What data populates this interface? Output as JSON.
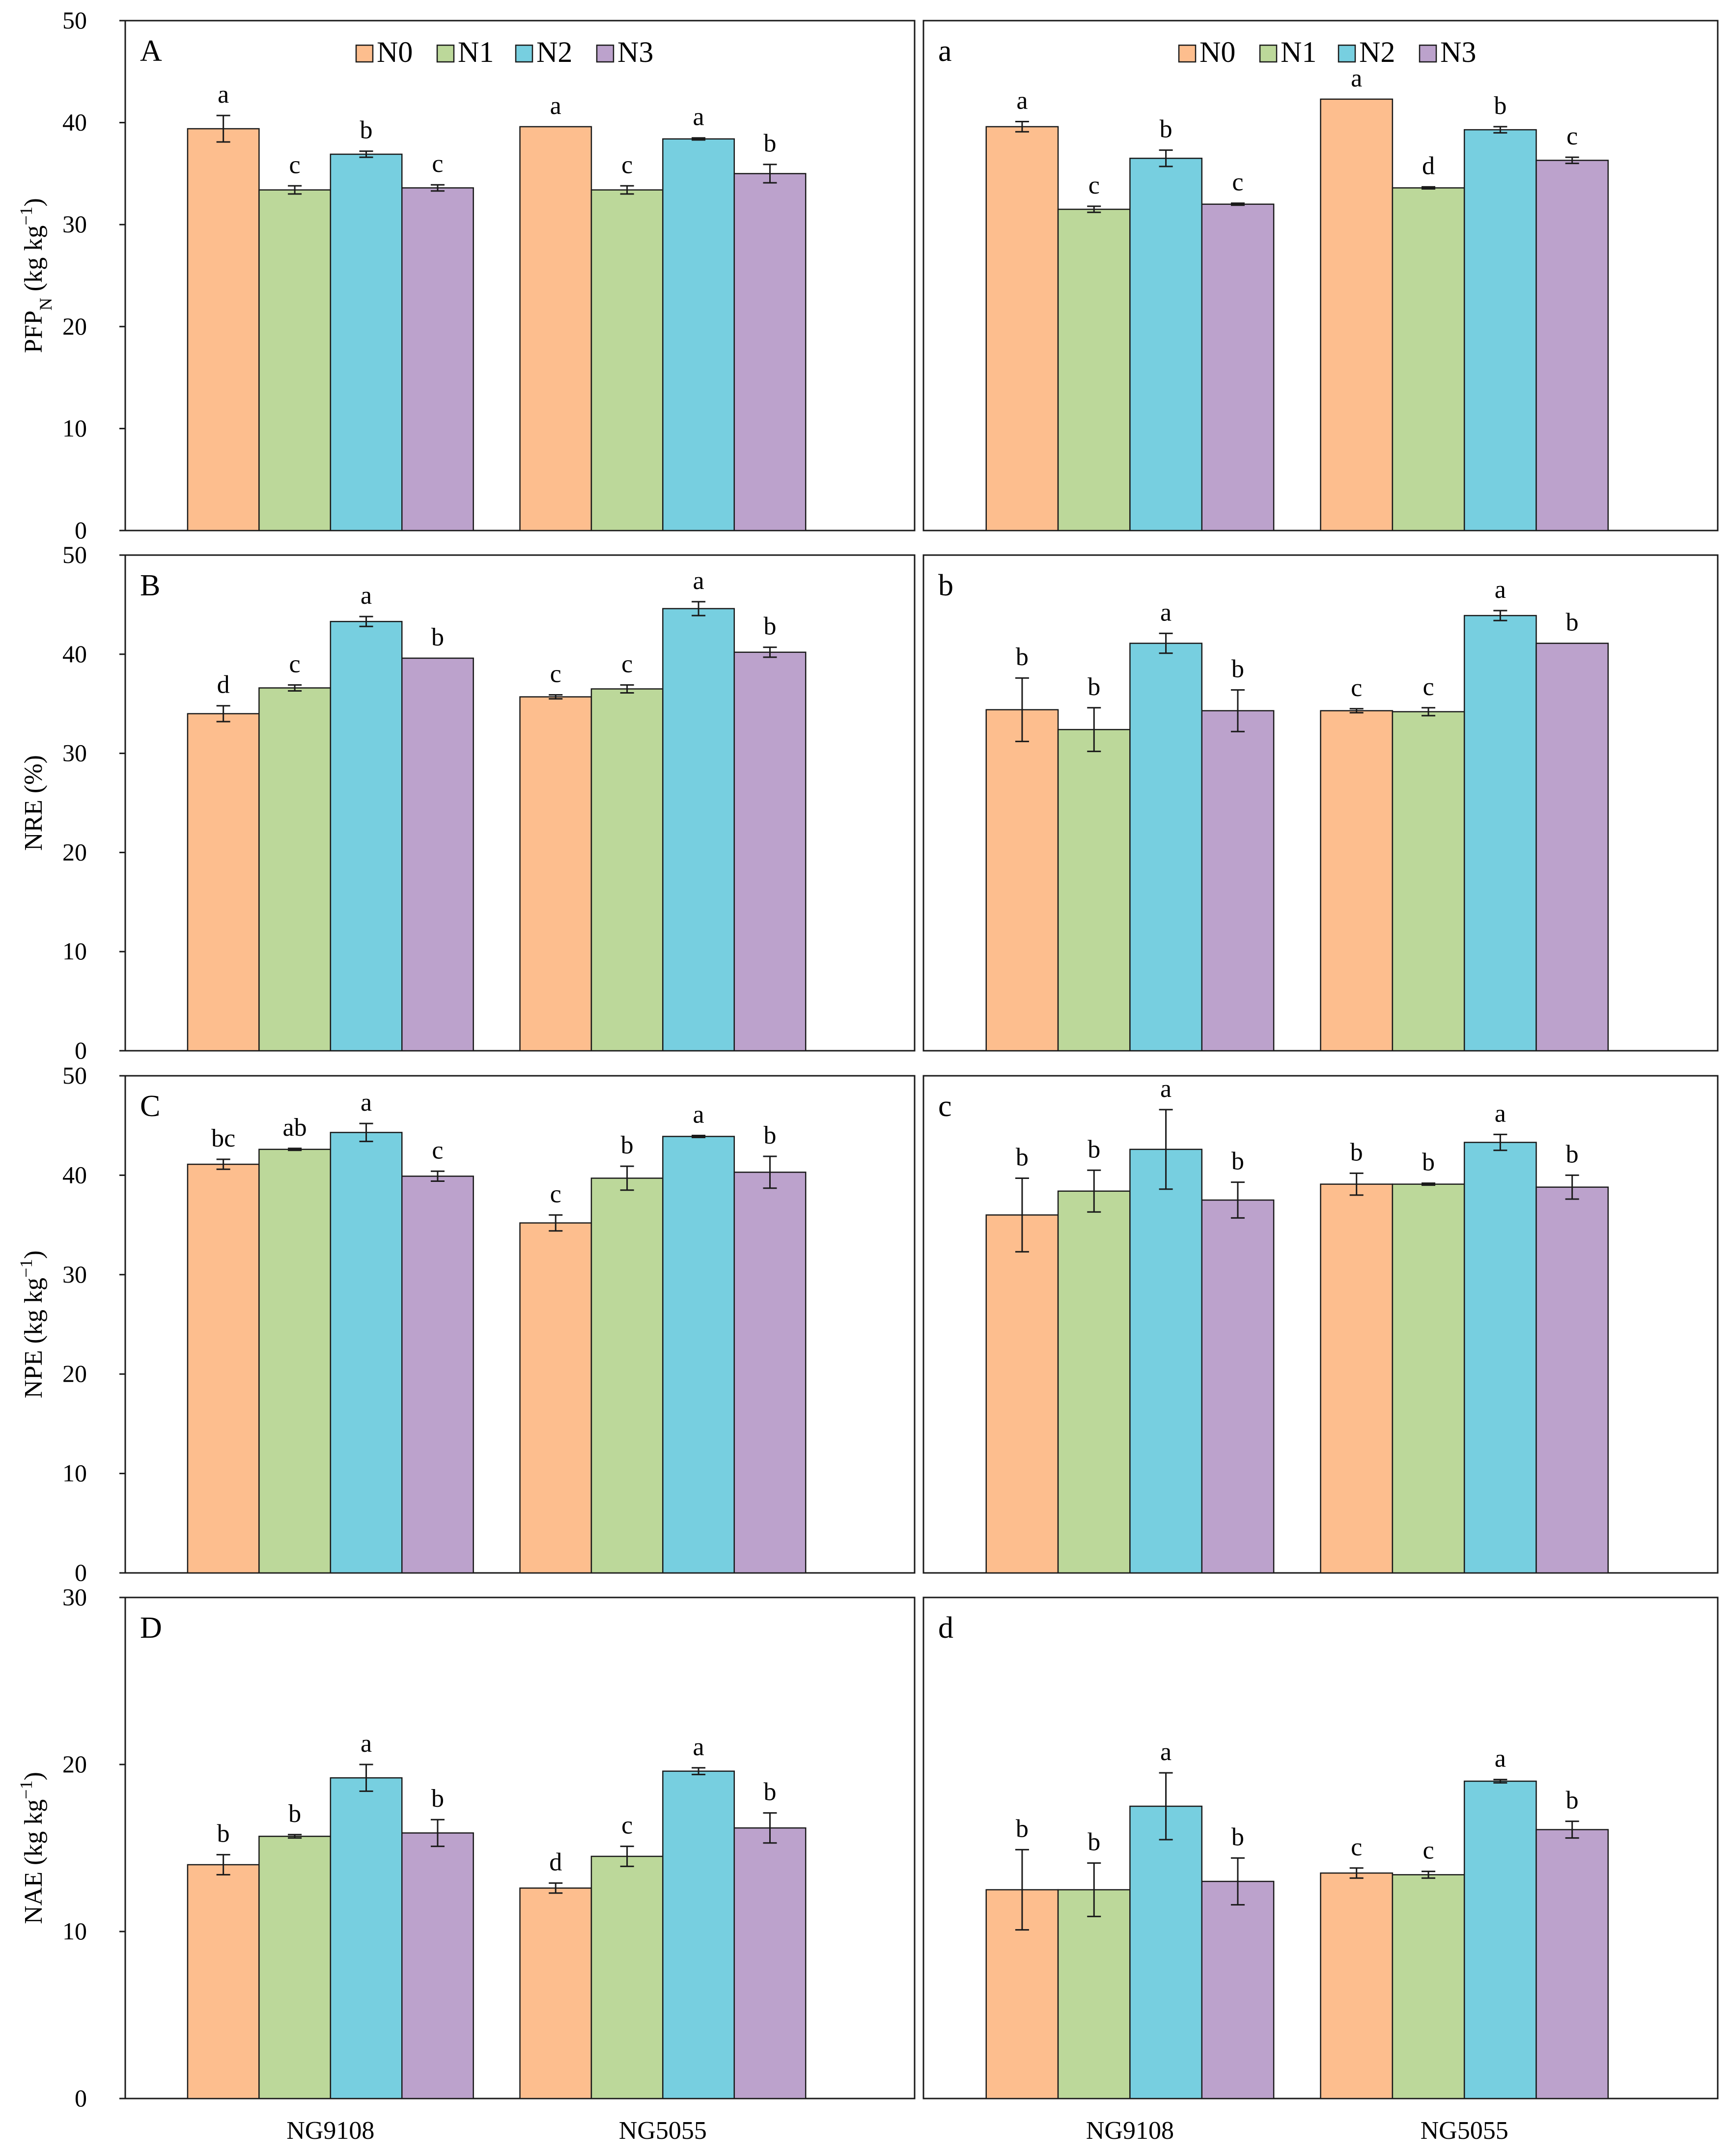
{
  "colors": {
    "N0": "#fdbe8e",
    "N1": "#bcd89a",
    "N2": "#77cfe0",
    "N3": "#bca2cc",
    "stroke": "#1a1a1a"
  },
  "legend": [
    "N0",
    "N1",
    "N2",
    "N3"
  ],
  "chart_data": [
    {
      "id": "A",
      "type": "bar",
      "panel_letter": "A",
      "ylabel_main": "PFP",
      "ylabel_sub": "N",
      "ylabel_rest": " (kg kg",
      "ylabel_sup": "−1",
      "ylabel_end": ")",
      "ylim": [
        0,
        50
      ],
      "yticks": [
        "0",
        "10",
        "20",
        "30",
        "40",
        "50"
      ],
      "categories": [
        "NG9108",
        "NG5055"
      ],
      "series": [
        {
          "name": "N0",
          "values": [
            39.4,
            39.6
          ],
          "err": [
            1.3,
            0
          ],
          "letters": [
            "a",
            "a"
          ]
        },
        {
          "name": "N1",
          "values": [
            33.4,
            33.4
          ],
          "err": [
            0.4,
            0.4
          ],
          "letters": [
            "c",
            "c"
          ]
        },
        {
          "name": "N2",
          "values": [
            36.9,
            38.4
          ],
          "err": [
            0.3,
            0.1
          ],
          "letters": [
            "b",
            "a"
          ]
        },
        {
          "name": "N3",
          "values": [
            33.6,
            35.0
          ],
          "err": [
            0.3,
            0.9
          ],
          "letters": [
            "c",
            "b"
          ]
        }
      ]
    },
    {
      "id": "a",
      "type": "bar",
      "panel_letter": "a",
      "ylim": [
        0,
        50
      ],
      "categories": [
        "NG9108",
        "NG5055"
      ],
      "series": [
        {
          "name": "N0",
          "values": [
            39.6,
            42.3
          ],
          "err": [
            0.5,
            0
          ],
          "letters": [
            "a",
            "a"
          ]
        },
        {
          "name": "N1",
          "values": [
            31.5,
            33.6
          ],
          "err": [
            0.3,
            0.1
          ],
          "letters": [
            "c",
            "d"
          ]
        },
        {
          "name": "N2",
          "values": [
            36.5,
            39.3
          ],
          "err": [
            0.8,
            0.3
          ],
          "letters": [
            "b",
            "b"
          ]
        },
        {
          "name": "N3",
          "values": [
            32.0,
            36.3
          ],
          "err": [
            0.1,
            0.3
          ],
          "letters": [
            "c",
            "c"
          ]
        }
      ]
    },
    {
      "id": "B",
      "type": "bar",
      "panel_letter": "B",
      "ylabel_main": "NRE (%)",
      "ylim": [
        0,
        50
      ],
      "yticks": [
        "0",
        "10",
        "20",
        "30",
        "40",
        "50"
      ],
      "categories": [
        "NG9108",
        "NG5055"
      ],
      "series": [
        {
          "name": "N0",
          "values": [
            34.0,
            35.7
          ],
          "err": [
            0.8,
            0.2
          ],
          "letters": [
            "d",
            "c"
          ]
        },
        {
          "name": "N1",
          "values": [
            36.6,
            36.5
          ],
          "err": [
            0.3,
            0.4
          ],
          "letters": [
            "c",
            "c"
          ]
        },
        {
          "name": "N2",
          "values": [
            43.3,
            44.6
          ],
          "err": [
            0.5,
            0.7
          ],
          "letters": [
            "a",
            "a"
          ]
        },
        {
          "name": "N3",
          "values": [
            39.6,
            40.2
          ],
          "err": [
            0,
            0.5
          ],
          "letters": [
            "b",
            "b"
          ]
        }
      ]
    },
    {
      "id": "b",
      "type": "bar",
      "panel_letter": "b",
      "ylim": [
        0,
        50
      ],
      "categories": [
        "NG9108",
        "NG5055"
      ],
      "series": [
        {
          "name": "N0",
          "values": [
            34.4,
            34.3
          ],
          "err": [
            3.2,
            0.2
          ],
          "letters": [
            "b",
            "c"
          ]
        },
        {
          "name": "N1",
          "values": [
            32.4,
            34.2
          ],
          "err": [
            2.2,
            0.4
          ],
          "letters": [
            "b",
            "c"
          ]
        },
        {
          "name": "N2",
          "values": [
            41.1,
            43.9
          ],
          "err": [
            1.0,
            0.5
          ],
          "letters": [
            "a",
            "a"
          ]
        },
        {
          "name": "N3",
          "values": [
            34.3,
            41.1
          ],
          "err": [
            2.1,
            0
          ],
          "letters": [
            "b",
            "b"
          ]
        }
      ]
    },
    {
      "id": "C",
      "type": "bar",
      "panel_letter": "C",
      "ylabel_main": "NPE (kg kg",
      "ylabel_sup": "−1",
      "ylabel_end": ")",
      "ylim": [
        0,
        50
      ],
      "yticks": [
        "0",
        "10",
        "20",
        "30",
        "40",
        "50"
      ],
      "categories": [
        "NG9108",
        "NG5055"
      ],
      "series": [
        {
          "name": "N0",
          "values": [
            41.1,
            35.2
          ],
          "err": [
            0.5,
            0.8
          ],
          "letters": [
            "bc",
            "c"
          ]
        },
        {
          "name": "N1",
          "values": [
            42.6,
            39.7
          ],
          "err": [
            0.1,
            1.2
          ],
          "letters": [
            "ab",
            "b"
          ]
        },
        {
          "name": "N2",
          "values": [
            44.3,
            43.9
          ],
          "err": [
            0.9,
            0.1
          ],
          "letters": [
            "a",
            "a"
          ]
        },
        {
          "name": "N3",
          "values": [
            39.9,
            40.3
          ],
          "err": [
            0.5,
            1.6
          ],
          "letters": [
            "c",
            "b"
          ]
        }
      ]
    },
    {
      "id": "c",
      "type": "bar",
      "panel_letter": "c",
      "ylim": [
        0,
        50
      ],
      "categories": [
        "NG9108",
        "NG5055"
      ],
      "series": [
        {
          "name": "N0",
          "values": [
            36.0,
            39.1
          ],
          "err": [
            3.7,
            1.1
          ],
          "letters": [
            "b",
            "b"
          ]
        },
        {
          "name": "N1",
          "values": [
            38.4,
            39.1
          ],
          "err": [
            2.1,
            0.1
          ],
          "letters": [
            "b",
            "b"
          ]
        },
        {
          "name": "N2",
          "values": [
            42.6,
            43.3
          ],
          "err": [
            4.0,
            0.8
          ],
          "letters": [
            "a",
            "a"
          ]
        },
        {
          "name": "N3",
          "values": [
            37.5,
            38.8
          ],
          "err": [
            1.8,
            1.2
          ],
          "letters": [
            "b",
            "b"
          ]
        }
      ]
    },
    {
      "id": "D",
      "type": "bar",
      "panel_letter": "D",
      "ylabel_main": "NAE (kg kg",
      "ylabel_sup": "−1",
      "ylabel_end": ")",
      "ylim": [
        0,
        30
      ],
      "yticks": [
        "0",
        "10",
        "20",
        "30"
      ],
      "categories": [
        "NG9108",
        "NG5055"
      ],
      "series": [
        {
          "name": "N0",
          "values": [
            14.0,
            12.6
          ],
          "err": [
            0.6,
            0.3
          ],
          "letters": [
            "b",
            "d"
          ]
        },
        {
          "name": "N1",
          "values": [
            15.7,
            14.5
          ],
          "err": [
            0.1,
            0.6
          ],
          "letters": [
            "b",
            "c"
          ]
        },
        {
          "name": "N2",
          "values": [
            19.2,
            19.6
          ],
          "err": [
            0.8,
            0.2
          ],
          "letters": [
            "a",
            "a"
          ]
        },
        {
          "name": "N3",
          "values": [
            15.9,
            16.2
          ],
          "err": [
            0.8,
            0.9
          ],
          "letters": [
            "b",
            "b"
          ]
        }
      ]
    },
    {
      "id": "d",
      "type": "bar",
      "panel_letter": "d",
      "ylim": [
        0,
        30
      ],
      "categories": [
        "NG9108",
        "NG5055"
      ],
      "series": [
        {
          "name": "N0",
          "values": [
            12.5,
            13.5
          ],
          "err": [
            2.4,
            0.3
          ],
          "letters": [
            "b",
            "c"
          ]
        },
        {
          "name": "N1",
          "values": [
            12.5,
            13.4
          ],
          "err": [
            1.6,
            0.2
          ],
          "letters": [
            "b",
            "c"
          ]
        },
        {
          "name": "N2",
          "values": [
            17.5,
            19.0
          ],
          "err": [
            2.0,
            0.1
          ],
          "letters": [
            "a",
            "a"
          ]
        },
        {
          "name": "N3",
          "values": [
            13.0,
            16.1
          ],
          "err": [
            1.4,
            0.5
          ],
          "letters": [
            "b",
            "b"
          ]
        }
      ]
    }
  ]
}
